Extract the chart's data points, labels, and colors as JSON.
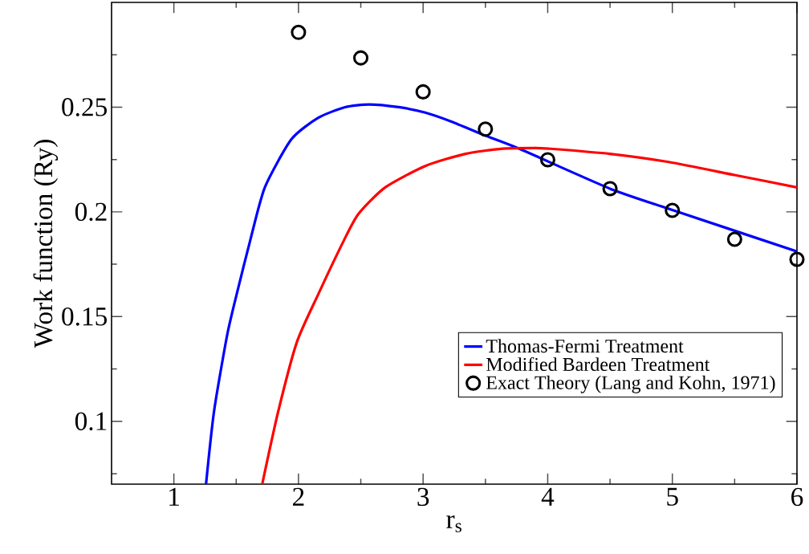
{
  "chart_data": {
    "type": "line",
    "xlabel": "r$_{s}$",
    "ylabel": "Work function (Ry)",
    "xlim": [
      0.5,
      6
    ],
    "ylim": [
      0.07,
      0.3
    ],
    "xticks": [
      1,
      {
        "value": 1.5,
        "label": null
      },
      2,
      {
        "value": 2.5,
        "label": null
      },
      3,
      {
        "value": 3.5,
        "label": null
      },
      4,
      {
        "value": 4.5,
        "label": null
      },
      5,
      {
        "value": 5.5,
        "label": null
      },
      6
    ],
    "yticks": [
      {
        "value": 0.075,
        "label": null
      },
      0.1,
      {
        "value": 0.125,
        "label": null
      },
      0.15,
      {
        "value": 0.175,
        "label": null
      },
      0.2,
      {
        "value": 0.225,
        "label": null
      },
      0.25,
      {
        "value": 0.275,
        "label": null
      }
    ],
    "grid": false,
    "legend": "bottom right",
    "series": [
      {
        "name": "Thomas-Fermi Treatment",
        "color": "#0000ff",
        "marker": "none",
        "line_style": "solid",
        "x": [
          1.258,
          1.322,
          1.429,
          1.515,
          1.612,
          1.73,
          1.944,
          2.159,
          2.374,
          2.567,
          2.803,
          3.018,
          3.232,
          3.49,
          3.769,
          4.499,
          4.999,
          6.0
        ],
        "values": [
          0.07,
          0.1046,
          0.1416,
          0.1633,
          0.1862,
          0.2117,
          0.2347,
          0.2449,
          0.25,
          0.2513,
          0.25,
          0.2474,
          0.243,
          0.2366,
          0.2302,
          0.2111,
          0.2009,
          0.1811
        ]
      },
      {
        "name": "Modified Bardeen Treatment",
        "color": "#ff0000",
        "marker": "none",
        "line_style": "solid",
        "x": [
          1.709,
          1.837,
          1.987,
          2.159,
          2.363,
          2.481,
          2.696,
          3.018,
          3.34,
          3.64,
          3.9,
          4.005,
          4.499,
          4.971,
          5.508,
          6.0
        ],
        "values": [
          0.07,
          0.1046,
          0.1378,
          0.1607,
          0.1862,
          0.199,
          0.2117,
          0.2219,
          0.2277,
          0.2302,
          0.2305,
          0.2302,
          0.2277,
          0.2238,
          0.2175,
          0.2117
        ]
      },
      {
        "name": "Exact Theory (Lang and Kohn, 1971)",
        "type": "scatter",
        "color": "#000000",
        "marker": "circle",
        "x": [
          2,
          2.5,
          3,
          3.5,
          4,
          4.5,
          5,
          5.5,
          6
        ],
        "values": [
          0.2857,
          0.2735,
          0.2573,
          0.2395,
          0.2249,
          0.2111,
          0.2007,
          0.1869,
          0.1773
        ]
      }
    ]
  }
}
